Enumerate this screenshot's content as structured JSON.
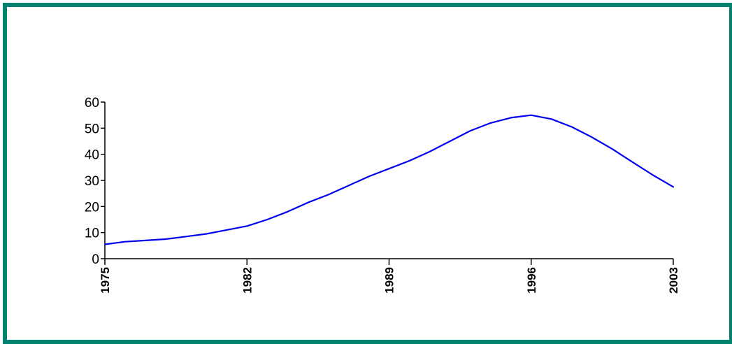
{
  "colors": {
    "frame_border": "#00826f",
    "line": "#0000ee",
    "axis": "#000000",
    "background": "#ffffff"
  },
  "chart_data": {
    "type": "line",
    "title": "",
    "xlabel": "",
    "ylabel": "",
    "xlim": [
      1975,
      2003
    ],
    "ylim": [
      0,
      60
    ],
    "x_ticks": [
      1975,
      1982,
      1989,
      1996,
      2003
    ],
    "y_ticks": [
      0,
      10,
      20,
      30,
      40,
      50,
      60
    ],
    "grid": false,
    "legend": "none",
    "series": [
      {
        "x": [
          1975,
          1976,
          1977,
          1978,
          1979,
          1980,
          1981,
          1982,
          1983,
          1984,
          1985,
          1986,
          1987,
          1988,
          1989,
          1990,
          1991,
          1992,
          1993,
          1994,
          1995,
          1996,
          1997,
          1998,
          1999,
          2000,
          2001,
          2002,
          2003
        ],
        "values": [
          5.5,
          6.5,
          7,
          7.5,
          8.5,
          9.5,
          11,
          12.5,
          15,
          18,
          21.5,
          24.5,
          28,
          31.5,
          34.5,
          37.5,
          41,
          45,
          49,
          52,
          54,
          55,
          53.5,
          50.5,
          46.5,
          42,
          37,
          32,
          27.5
        ]
      }
    ]
  }
}
